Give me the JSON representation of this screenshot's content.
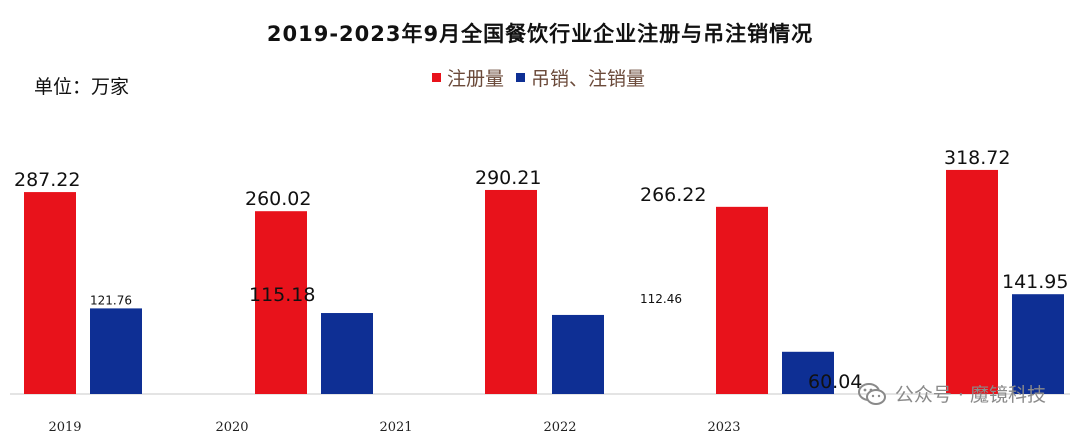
{
  "title": "2019-2023年9月全国餐饮行业企业注册与吊注销情况",
  "unit_label": "单位：万家",
  "watermark": {
    "text": "公众号 · 魔镜科技",
    "icon": "wechat-icon"
  },
  "chart_data": {
    "type": "bar",
    "title": "2019-2023年9月全国餐饮行业企业注册与吊注销情况",
    "categories": [
      "2019",
      "2020",
      "2021",
      "2022",
      "2023"
    ],
    "series": [
      {
        "name": "注册量",
        "color": "#e8121b",
        "values": [
          287.22,
          260.02,
          290.21,
          266.22,
          318.72
        ],
        "labels": [
          "287.22",
          "260.02",
          "290.21",
          "266.22",
          "318.72"
        ]
      },
      {
        "name": "吊销、注销量",
        "color": "#0e2f94",
        "values": [
          121.76,
          115.18,
          112.46,
          60.04,
          141.95
        ],
        "labels": [
          "121.76",
          "115.18",
          "112.46",
          "60.04",
          "141.95"
        ]
      }
    ],
    "ylim": [
      0,
      330
    ],
    "xlabel": "",
    "ylabel": "",
    "grid": false,
    "legend_position": "top-center"
  }
}
